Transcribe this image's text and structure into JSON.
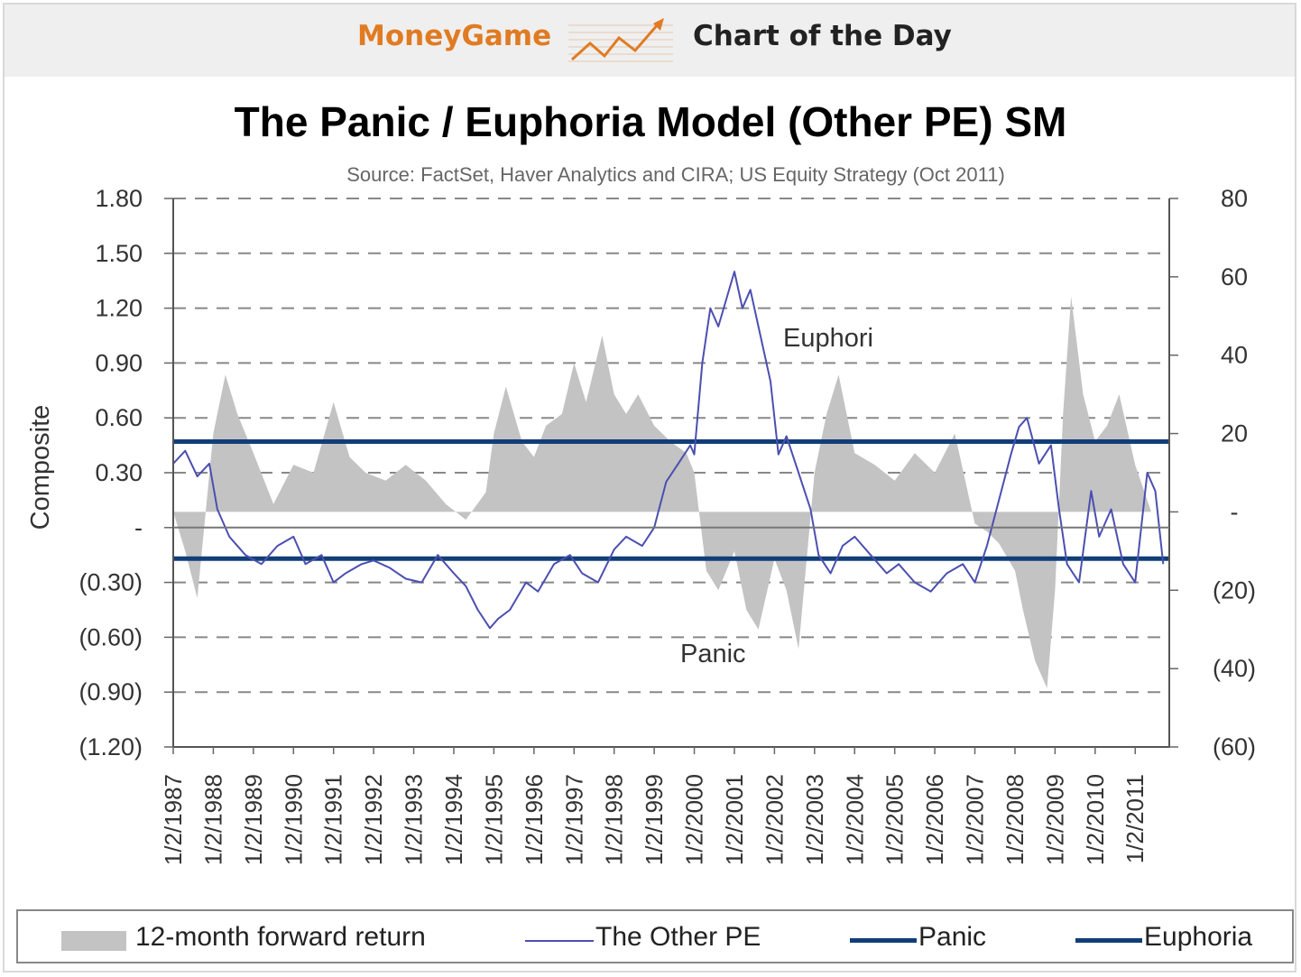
{
  "header": {
    "brand": "MoneyGame",
    "feature": "Chart of the Day",
    "brand_color": "#e07b22"
  },
  "chart_data": {
    "type": "line",
    "title": "The Panic / Euphoria Model (Other PE) SM",
    "subtitle": "Source: FactSet, Haver Analytics and CIRA; US Equity Strategy (Oct 2011)",
    "ylabel": "Composite",
    "ylim": [
      -1.2,
      1.8
    ],
    "y2lim": [
      -60,
      80
    ],
    "y_ticks": [
      "1.80",
      "1.50",
      "1.20",
      "0.90",
      "0.60",
      "0.30",
      "-",
      "(0.30)",
      "(0.60)",
      "(0.90)",
      "(1.20)"
    ],
    "y2_ticks": [
      "80",
      "60",
      "40",
      "20",
      "-",
      "(20)",
      "(40)",
      "(60)"
    ],
    "x_ticks": [
      "1/2/1987",
      "1/2/1988",
      "1/2/1989",
      "1/2/1990",
      "1/2/1991",
      "1/2/1992",
      "1/2/1993",
      "1/2/1994",
      "1/2/1995",
      "1/2/1996",
      "1/2/1997",
      "1/2/1998",
      "1/2/1999",
      "1/2/2000",
      "1/2/2001",
      "1/2/2002",
      "1/2/2003",
      "1/2/2004",
      "1/2/2005",
      "1/2/2006",
      "1/2/2007",
      "1/2/2008",
      "1/2/2009",
      "1/2/2010",
      "1/2/2011"
    ],
    "grid": true,
    "legend_position": "bottom",
    "annotations": [
      "Euphori",
      "Panic"
    ],
    "colors": {
      "forward_return": "#c3c3c3",
      "other_pe": "#4b4fb0",
      "thresholds": "#123e78"
    },
    "series": [
      {
        "name": "12-month forward return",
        "type": "area",
        "axis": "right",
        "x": [
          1987.0,
          1987.3,
          1987.6,
          1988.0,
          1988.3,
          1988.6,
          1989.0,
          1989.5,
          1990.0,
          1990.5,
          1991.0,
          1991.4,
          1991.8,
          1992.3,
          1992.8,
          1993.3,
          1993.8,
          1994.3,
          1994.8,
          1995.0,
          1995.3,
          1995.7,
          1996.0,
          1996.3,
          1996.7,
          1997.0,
          1997.3,
          1997.7,
          1998.0,
          1998.3,
          1998.6,
          1999.0,
          1999.4,
          1999.8,
          2000.0,
          2000.3,
          2000.6,
          2001.0,
          2001.3,
          2001.6,
          2002.0,
          2002.3,
          2002.6,
          2003.0,
          2003.3,
          2003.6,
          2004.0,
          2004.5,
          2005.0,
          2005.5,
          2006.0,
          2006.5,
          2007.0,
          2007.3,
          2007.6,
          2008.0,
          2008.2,
          2008.5,
          2008.8,
          2009.0,
          2009.2,
          2009.4,
          2009.7,
          2010.0,
          2010.3,
          2010.6,
          2011.0,
          2011.4
        ],
        "values": [
          0,
          -10,
          -22,
          20,
          35,
          25,
          15,
          2,
          12,
          10,
          28,
          14,
          10,
          8,
          12,
          8,
          2,
          -2,
          5,
          20,
          32,
          18,
          14,
          22,
          25,
          38,
          28,
          45,
          30,
          25,
          30,
          22,
          18,
          15,
          10,
          -15,
          -20,
          -10,
          -25,
          -30,
          -12,
          -20,
          -35,
          10,
          25,
          35,
          15,
          12,
          8,
          15,
          10,
          20,
          -3,
          -5,
          -8,
          -15,
          -25,
          -38,
          -45,
          -20,
          25,
          55,
          30,
          18,
          22,
          30,
          12,
          0
        ]
      },
      {
        "name": "The Other PE",
        "type": "line",
        "axis": "left",
        "x": [
          1987.0,
          1987.3,
          1987.6,
          1987.9,
          1988.1,
          1988.4,
          1988.8,
          1989.2,
          1989.6,
          1990.0,
          1990.3,
          1990.7,
          1991.0,
          1991.3,
          1991.7,
          1992.0,
          1992.4,
          1992.8,
          1993.2,
          1993.6,
          1994.0,
          1994.3,
          1994.6,
          1994.9,
          1995.1,
          1995.4,
          1995.8,
          1996.1,
          1996.5,
          1996.9,
          1997.2,
          1997.6,
          1998.0,
          1998.3,
          1998.7,
          1999.0,
          1999.3,
          1999.6,
          1999.9,
          2000.0,
          2000.2,
          2000.4,
          2000.6,
          2000.8,
          2001.0,
          2001.2,
          2001.4,
          2001.6,
          2001.9,
          2002.1,
          2002.3,
          2002.6,
          2002.9,
          2003.1,
          2003.4,
          2003.7,
          2004.0,
          2004.4,
          2004.8,
          2005.1,
          2005.5,
          2005.9,
          2006.3,
          2006.7,
          2007.0,
          2007.3,
          2007.6,
          2007.9,
          2008.1,
          2008.3,
          2008.6,
          2008.9,
          2009.1,
          2009.3,
          2009.6,
          2009.9,
          2010.1,
          2010.4,
          2010.7,
          2011.0,
          2011.3,
          2011.5,
          2011.7
        ],
        "values": [
          0.35,
          0.42,
          0.28,
          0.35,
          0.1,
          -0.05,
          -0.15,
          -0.2,
          -0.1,
          -0.05,
          -0.2,
          -0.15,
          -0.3,
          -0.25,
          -0.2,
          -0.18,
          -0.22,
          -0.28,
          -0.3,
          -0.15,
          -0.25,
          -0.32,
          -0.45,
          -0.55,
          -0.5,
          -0.45,
          -0.3,
          -0.35,
          -0.2,
          -0.15,
          -0.25,
          -0.3,
          -0.12,
          -0.05,
          -0.1,
          0.0,
          0.25,
          0.35,
          0.45,
          0.4,
          0.9,
          1.2,
          1.1,
          1.25,
          1.4,
          1.2,
          1.3,
          1.1,
          0.8,
          0.4,
          0.5,
          0.3,
          0.1,
          -0.15,
          -0.25,
          -0.1,
          -0.05,
          -0.15,
          -0.25,
          -0.2,
          -0.3,
          -0.35,
          -0.25,
          -0.2,
          -0.3,
          -0.1,
          0.15,
          0.4,
          0.55,
          0.6,
          0.35,
          0.45,
          0.1,
          -0.2,
          -0.3,
          0.2,
          -0.05,
          0.1,
          -0.2,
          -0.3,
          0.3,
          0.2,
          -0.2
        ]
      },
      {
        "name": "Panic",
        "type": "hline",
        "axis": "left",
        "value": -0.17
      },
      {
        "name": "Euphoria",
        "type": "hline",
        "axis": "left",
        "value": 0.47
      }
    ]
  }
}
